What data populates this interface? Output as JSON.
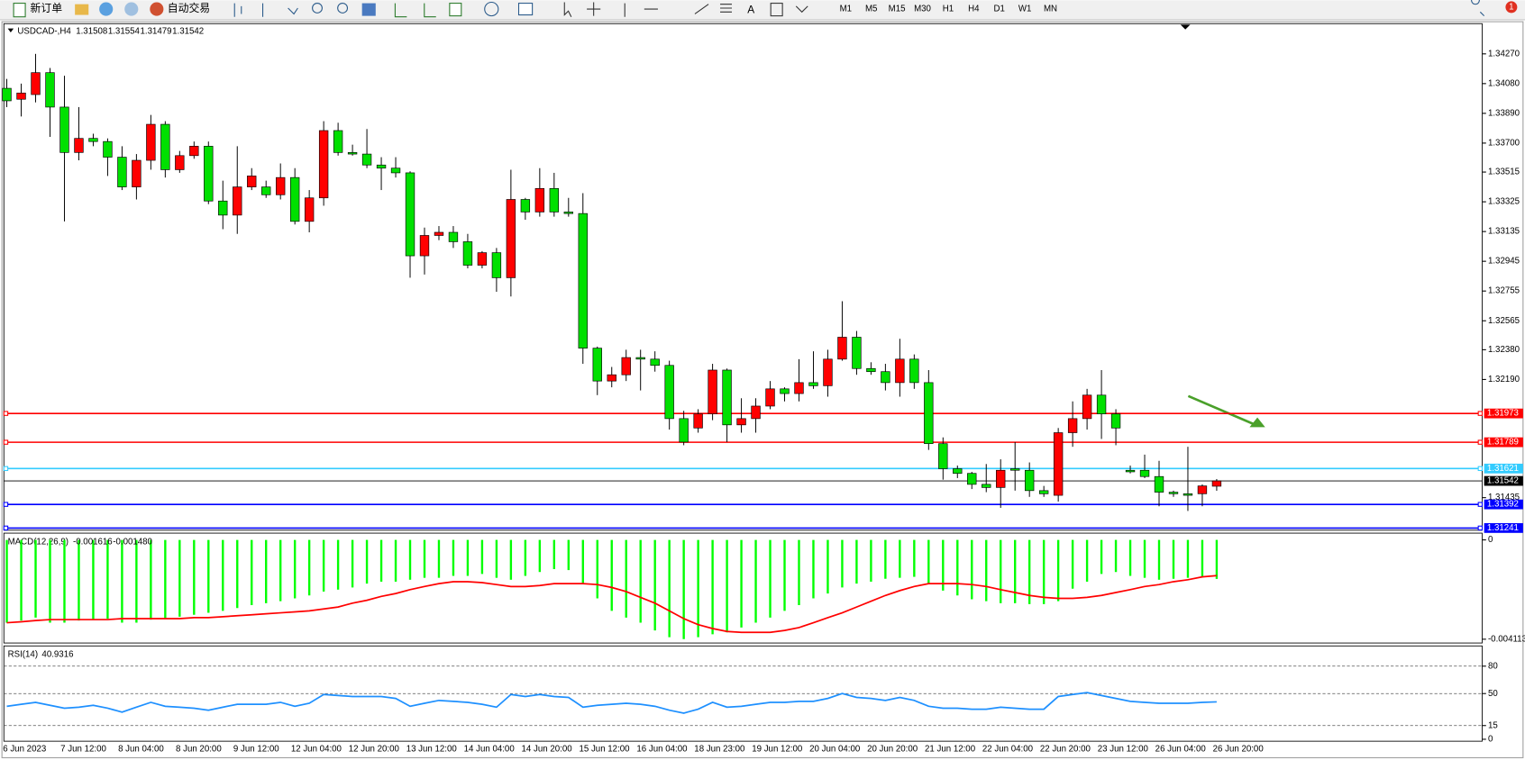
{
  "toolbar": {
    "new_order": "新订单",
    "auto_trading": "自动交易",
    "text_tool": "A",
    "timeframes": [
      "M1",
      "M5",
      "M15",
      "M30",
      "H1",
      "H4",
      "D1",
      "W1",
      "MN"
    ],
    "notifications": 1
  },
  "chart_data": [
    {
      "type": "candlestick",
      "title": "USDCAD-,H4",
      "categories": [
        "6 Jun 2023",
        null,
        null,
        null,
        "7 Jun 12:00",
        null,
        null,
        null,
        "8 Jun 04:00",
        null,
        null,
        null,
        "8 Jun 20:00",
        null,
        null,
        null,
        "9 Jun 12:00",
        null,
        null,
        null,
        "12 Jun 04:00",
        null,
        null,
        null,
        "12 Jun 20:00",
        null,
        null,
        null,
        "13 Jun 12:00",
        null,
        null,
        null,
        "14 Jun 04:00",
        null,
        null,
        null,
        "14 Jun 20:00",
        null,
        null,
        null,
        "15 Jun 12:00",
        null,
        null,
        null,
        "16 Jun 04:00",
        null,
        null,
        null,
        "18 Jun 23:00",
        null,
        null,
        null,
        "19 Jun 12:00",
        null,
        null,
        null,
        "20 Jun 04:00",
        null,
        null,
        null,
        "20 Jun 20:00",
        null,
        null,
        null,
        "21 Jun 12:00",
        null,
        null,
        null,
        "22 Jun 04:00",
        null,
        null,
        null,
        "22 Jun 20:00",
        null,
        null,
        null,
        "23 Jun 12:00",
        null,
        null,
        null,
        "26 Jun 04:00",
        null,
        null,
        null,
        "26 Jun 20:00"
      ],
      "open": [
        1.3405,
        1.3398,
        1.3401,
        1.3415,
        1.3393,
        1.3364,
        1.3373,
        1.3371,
        1.3361,
        1.3342,
        1.3359,
        1.3382,
        1.3353,
        1.3362,
        1.3368,
        1.3333,
        1.3324,
        1.3342,
        1.3342,
        1.3337,
        1.3348,
        1.332,
        1.3335,
        1.3378,
        1.3364,
        1.3363,
        1.3356,
        1.3354,
        1.3351,
        1.3298,
        1.3311,
        1.3313,
        1.3307,
        1.3292,
        1.33,
        1.3284,
        1.3334,
        1.3326,
        1.3341,
        1.3326,
        1.3325,
        1.3239,
        1.3218,
        1.3222,
        1.3233,
        1.3232,
        1.3228,
        1.3194,
        1.3188,
        1.3197,
        1.3225,
        1.319,
        1.3194,
        1.3202,
        1.3213,
        1.321,
        1.3217,
        1.3215,
        1.3232,
        1.3246,
        1.3226,
        1.3224,
        1.3217,
        1.3232,
        1.3217,
        1.3178,
        1.3162,
        1.3159,
        1.3152,
        1.315,
        1.3162,
        1.3161,
        1.3148,
        1.3145,
        1.3185,
        1.3194,
        1.3209,
        1.3197,
        1.3161,
        1.3161,
        1.3157,
        1.3147,
        1.3146,
        1.3146,
        1.31508
      ],
      "high": [
        1.3411,
        1.3408,
        1.3427,
        1.3418,
        1.3413,
        1.3393,
        1.3376,
        1.3373,
        1.3368,
        1.3363,
        1.3388,
        1.3384,
        1.3365,
        1.3371,
        1.3371,
        1.3346,
        1.3368,
        1.3354,
        1.3346,
        1.3357,
        1.3354,
        1.334,
        1.3384,
        1.3383,
        1.3369,
        1.3379,
        1.3361,
        1.3361,
        1.3352,
        1.3316,
        1.3317,
        1.3317,
        1.3312,
        1.3301,
        1.3303,
        1.3353,
        1.3335,
        1.3354,
        1.3351,
        1.3335,
        1.3338,
        1.324,
        1.3227,
        1.3238,
        1.3238,
        1.3237,
        1.3231,
        1.3199,
        1.32,
        1.3229,
        1.3226,
        1.3207,
        1.3207,
        1.3218,
        1.3214,
        1.3232,
        1.3237,
        1.3238,
        1.3269,
        1.325,
        1.323,
        1.3229,
        1.3245,
        1.3235,
        1.3225,
        1.3182,
        1.3164,
        1.316,
        1.3165,
        1.3168,
        1.3179,
        1.3166,
        1.3151,
        1.3188,
        1.3205,
        1.3213,
        1.3225,
        1.32,
        1.3164,
        1.3171,
        1.3167,
        1.3148,
        1.3176,
        1.3152,
        1.31554
      ],
      "low": [
        1.3393,
        1.3387,
        1.3396,
        1.3374,
        1.332,
        1.3359,
        1.3368,
        1.3349,
        1.334,
        1.3334,
        1.3353,
        1.3348,
        1.3351,
        1.336,
        1.3331,
        1.3315,
        1.3312,
        1.334,
        1.3335,
        1.3334,
        1.3318,
        1.3313,
        1.333,
        1.3362,
        1.3362,
        1.3354,
        1.334,
        1.3348,
        1.3284,
        1.3286,
        1.3308,
        1.3303,
        1.329,
        1.329,
        1.3275,
        1.3272,
        1.3321,
        1.3323,
        1.3323,
        1.3323,
        1.3229,
        1.3209,
        1.3214,
        1.3218,
        1.3212,
        1.3224,
        1.3187,
        1.3177,
        1.3185,
        1.3193,
        1.3179,
        1.3185,
        1.3185,
        1.32,
        1.3205,
        1.3205,
        1.3213,
        1.3208,
        1.3231,
        1.3222,
        1.3222,
        1.3212,
        1.3208,
        1.3213,
        1.3174,
        1.3155,
        1.3156,
        1.3149,
        1.3147,
        1.3137,
        1.3148,
        1.3144,
        1.3144,
        1.3141,
        1.3176,
        1.3187,
        1.3181,
        1.3177,
        1.3159,
        1.3156,
        1.3138,
        1.3144,
        1.3135,
        1.3138,
        1.31479
      ],
      "close": [
        1.3397,
        1.3402,
        1.3415,
        1.3393,
        1.3364,
        1.3373,
        1.3371,
        1.3361,
        1.3342,
        1.3359,
        1.3382,
        1.3353,
        1.3362,
        1.3368,
        1.3333,
        1.3324,
        1.3342,
        1.3349,
        1.3337,
        1.3348,
        1.332,
        1.3335,
        1.3378,
        1.3364,
        1.3363,
        1.3356,
        1.3354,
        1.3351,
        1.3298,
        1.3311,
        1.3313,
        1.3307,
        1.3292,
        1.33,
        1.3284,
        1.3334,
        1.3326,
        1.3341,
        1.3326,
        1.3325,
        1.3239,
        1.3218,
        1.3222,
        1.3233,
        1.3232,
        1.3228,
        1.3194,
        1.3179,
        1.3197,
        1.3225,
        1.319,
        1.3194,
        1.3202,
        1.3213,
        1.321,
        1.3217,
        1.3215,
        1.3232,
        1.3246,
        1.3226,
        1.3224,
        1.3217,
        1.3232,
        1.3217,
        1.3178,
        1.3162,
        1.3159,
        1.3152,
        1.315,
        1.3161,
        1.3161,
        1.3148,
        1.3146,
        1.3185,
        1.3194,
        1.3209,
        1.3197,
        1.3188,
        1.316,
        1.3157,
        1.3147,
        1.3146,
        1.3145,
        1.3151,
        1.31542
      ],
      "up_color": "#ff0000",
      "down_color": "#00e000",
      "price_line_color": "#000000",
      "ylim": [
        1.31227,
        1.34463
      ],
      "yticks": [
        {
          "value": 1.3427,
          "label": "1.34270"
        },
        {
          "value": 1.3408,
          "label": "1.34080"
        },
        {
          "value": 1.3389,
          "label": "1.33890"
        },
        {
          "value": 1.337,
          "label": "1.33700"
        },
        1.33515,
        1.33325,
        1.33135,
        1.32945,
        1.32755,
        1.32565,
        {
          "value": 1.3238,
          "label": "1.32380"
        },
        {
          "value": 1.3219,
          "label": "1.32190"
        },
        1.31435
      ],
      "hlines": [
        {
          "value": 1.31973,
          "color": "#ff0000"
        },
        {
          "value": 1.31789,
          "color": "#ff0000"
        },
        {
          "value": 1.31621,
          "color": "#33ccff"
        },
        {
          "value": 1.31392,
          "color": "#0000ff"
        },
        {
          "value": 1.31241,
          "color": "#0000ff"
        }
      ]
    },
    {
      "type": "macd",
      "title": "MACD(12,26,9)",
      "series": [
        {
          "kind": "histogram",
          "color": "#00ff00",
          "values": [
            -0.00343,
            -0.00334,
            -0.00322,
            -0.00343,
            -0.00343,
            -0.00334,
            -0.0033,
            -0.00326,
            -0.00343,
            -0.00343,
            -0.0033,
            -0.00326,
            -0.00318,
            -0.0031,
            -0.00302,
            -0.00294,
            -0.00282,
            -0.0027,
            -0.00262,
            -0.00254,
            -0.00242,
            -0.0023,
            -0.00214,
            -0.00206,
            -0.00197,
            -0.00181,
            -0.00173,
            -0.00173,
            -0.00165,
            -0.00157,
            -0.00157,
            -0.00149,
            -0.00149,
            -0.00141,
            -0.00157,
            -0.00165,
            -0.00149,
            -0.00133,
            -0.00121,
            -0.00125,
            -0.00181,
            -0.00242,
            -0.00294,
            -0.00322,
            -0.00343,
            -0.00375,
            -0.00403,
            -0.00411,
            -0.00403,
            -0.00391,
            -0.00383,
            -0.00363,
            -0.00343,
            -0.00322,
            -0.00294,
            -0.0027,
            -0.00242,
            -0.00222,
            -0.00197,
            -0.00181,
            -0.00173,
            -0.00161,
            -0.00157,
            -0.00153,
            -0.00181,
            -0.0021,
            -0.0023,
            -0.00246,
            -0.00254,
            -0.00262,
            -0.00262,
            -0.00266,
            -0.00266,
            -0.00254,
            -0.00202,
            -0.00173,
            -0.00141,
            -0.00133,
            -0.00149,
            -0.00157,
            -0.00165,
            -0.00161,
            -0.00157,
            -0.00153,
            -0.001616
          ]
        },
        {
          "kind": "line",
          "color": "#ff0000",
          "value_label": "-0.001480",
          "values": [
            -0.00343,
            -0.00339,
            -0.00334,
            -0.0033,
            -0.0033,
            -0.0033,
            -0.0033,
            -0.0033,
            -0.00326,
            -0.00326,
            -0.00326,
            -0.00326,
            -0.00326,
            -0.00322,
            -0.00322,
            -0.00318,
            -0.00314,
            -0.0031,
            -0.00306,
            -0.00302,
            -0.00298,
            -0.00294,
            -0.00286,
            -0.00278,
            -0.00262,
            -0.0025,
            -0.00234,
            -0.00222,
            -0.00206,
            -0.00193,
            -0.00181,
            -0.00173,
            -0.00173,
            -0.00177,
            -0.00185,
            -0.00193,
            -0.00193,
            -0.00189,
            -0.00181,
            -0.00181,
            -0.00181,
            -0.00185,
            -0.00197,
            -0.00214,
            -0.00238,
            -0.00262,
            -0.00294,
            -0.00326,
            -0.00351,
            -0.00367,
            -0.00379,
            -0.00383,
            -0.00383,
            -0.00383,
            -0.00375,
            -0.00363,
            -0.00343,
            -0.00322,
            -0.00302,
            -0.00278,
            -0.00254,
            -0.0023,
            -0.0021,
            -0.00193,
            -0.00181,
            -0.00181,
            -0.00181,
            -0.00185,
            -0.00193,
            -0.00206,
            -0.00218,
            -0.0023,
            -0.00238,
            -0.00242,
            -0.00242,
            -0.00238,
            -0.0023,
            -0.00218,
            -0.00206,
            -0.00193,
            -0.00185,
            -0.00173,
            -0.00165,
            -0.00153,
            -0.00148
          ]
        }
      ],
      "ylim": [
        -0.00427,
        0.00028
      ],
      "yticks": [
        0,
        -0.004113
      ]
    },
    {
      "type": "line",
      "title": "RSI(14)",
      "series": [
        {
          "color": "#1e90ff",
          "values": [
            36.1,
            38.3,
            40.4,
            37.2,
            34.0,
            35.1,
            37.2,
            34.0,
            29.7,
            35.1,
            40.4,
            36.1,
            35.1,
            34.0,
            31.8,
            35.1,
            38.3,
            38.3,
            38.3,
            40.4,
            36.1,
            39.4,
            49.0,
            47.9,
            46.8,
            46.8,
            46.8,
            44.7,
            36.1,
            39.4,
            42.5,
            41.5,
            40.4,
            38.3,
            35.1,
            49.0,
            46.8,
            49.0,
            46.8,
            45.8,
            35.1,
            37.2,
            38.3,
            39.4,
            38.3,
            36.1,
            31.8,
            28.6,
            32.9,
            40.4,
            35.1,
            36.1,
            38.3,
            40.4,
            40.4,
            41.5,
            41.5,
            44.7,
            50.1,
            45.8,
            44.7,
            42.5,
            45.8,
            42.5,
            36.1,
            34.0,
            34.0,
            32.9,
            32.9,
            35.1,
            34.0,
            32.9,
            32.9,
            46.8,
            49.0,
            51.1,
            47.9,
            44.7,
            41.5,
            40.4,
            39.4,
            39.4,
            39.4,
            40.4,
            40.9316
          ]
        }
      ],
      "ylim": [
        0,
        100
      ],
      "yticks": [
        0,
        15,
        50,
        80
      ],
      "grid": "dashed"
    }
  ]
}
